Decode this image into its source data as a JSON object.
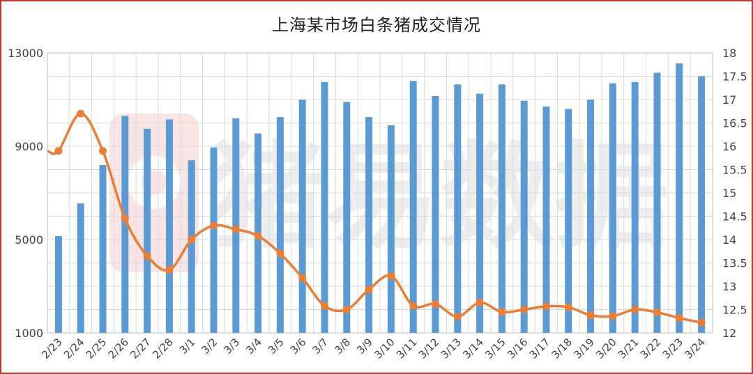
{
  "title": "上海某市场白条猪成交情况",
  "watermark": "猪易数据",
  "colors": {
    "bar": "#5b9bd5",
    "line": "#ed7d31",
    "grid": "#d9d9d9",
    "frame": "#c0392b",
    "watermark": "#8c8c8c",
    "logo": "#e04040"
  },
  "chart_data": {
    "type": "bar",
    "combo": "bar+line (dual axis)",
    "categories": [
      "2/23",
      "2/24",
      "2/25",
      "2/26",
      "2/27",
      "2/28",
      "3/1",
      "3/2",
      "3/3",
      "3/4",
      "3/5",
      "3/6",
      "3/7",
      "3/8",
      "3/9",
      "3/10",
      "3/11",
      "3/12",
      "3/13",
      "3/14",
      "3/15",
      "3/16",
      "3/17",
      "3/18",
      "3/19",
      "3/20",
      "3/21",
      "3/22",
      "3/23",
      "3/24"
    ],
    "series": [
      {
        "type": "bar",
        "axis": "left",
        "values": [
          5150,
          6550,
          8200,
          10300,
          9750,
          10150,
          8400,
          8950,
          10200,
          9550,
          10250,
          11000,
          11750,
          10900,
          10250,
          9900,
          11800,
          11150,
          11650,
          11250,
          11650,
          10950,
          10700,
          10600,
          11000,
          11700,
          11750,
          12150,
          12550,
          12000
        ]
      },
      {
        "type": "line",
        "axis": "right",
        "smooth": true,
        "values": [
          15.9,
          16.7,
          15.9,
          14.45,
          13.65,
          13.35,
          14.0,
          14.3,
          14.22,
          14.08,
          13.7,
          13.18,
          12.58,
          12.5,
          12.93,
          13.22,
          12.58,
          12.62,
          12.35,
          12.65,
          12.45,
          12.5,
          12.57,
          12.55,
          12.38,
          12.36,
          12.5,
          12.44,
          12.32,
          12.22
        ]
      }
    ],
    "y_left": {
      "ylim": [
        1000,
        13000
      ],
      "ticks": [
        "1000",
        "5000",
        "9000",
        "13000"
      ]
    },
    "y_right": {
      "ylim": [
        12,
        18
      ],
      "ticks": [
        "12",
        "12.5",
        "13",
        "13.5",
        "14",
        "14.5",
        "15",
        "15.5",
        "16",
        "16.5",
        "17",
        "17.5",
        "18"
      ]
    },
    "grid": true,
    "legend": "none"
  }
}
